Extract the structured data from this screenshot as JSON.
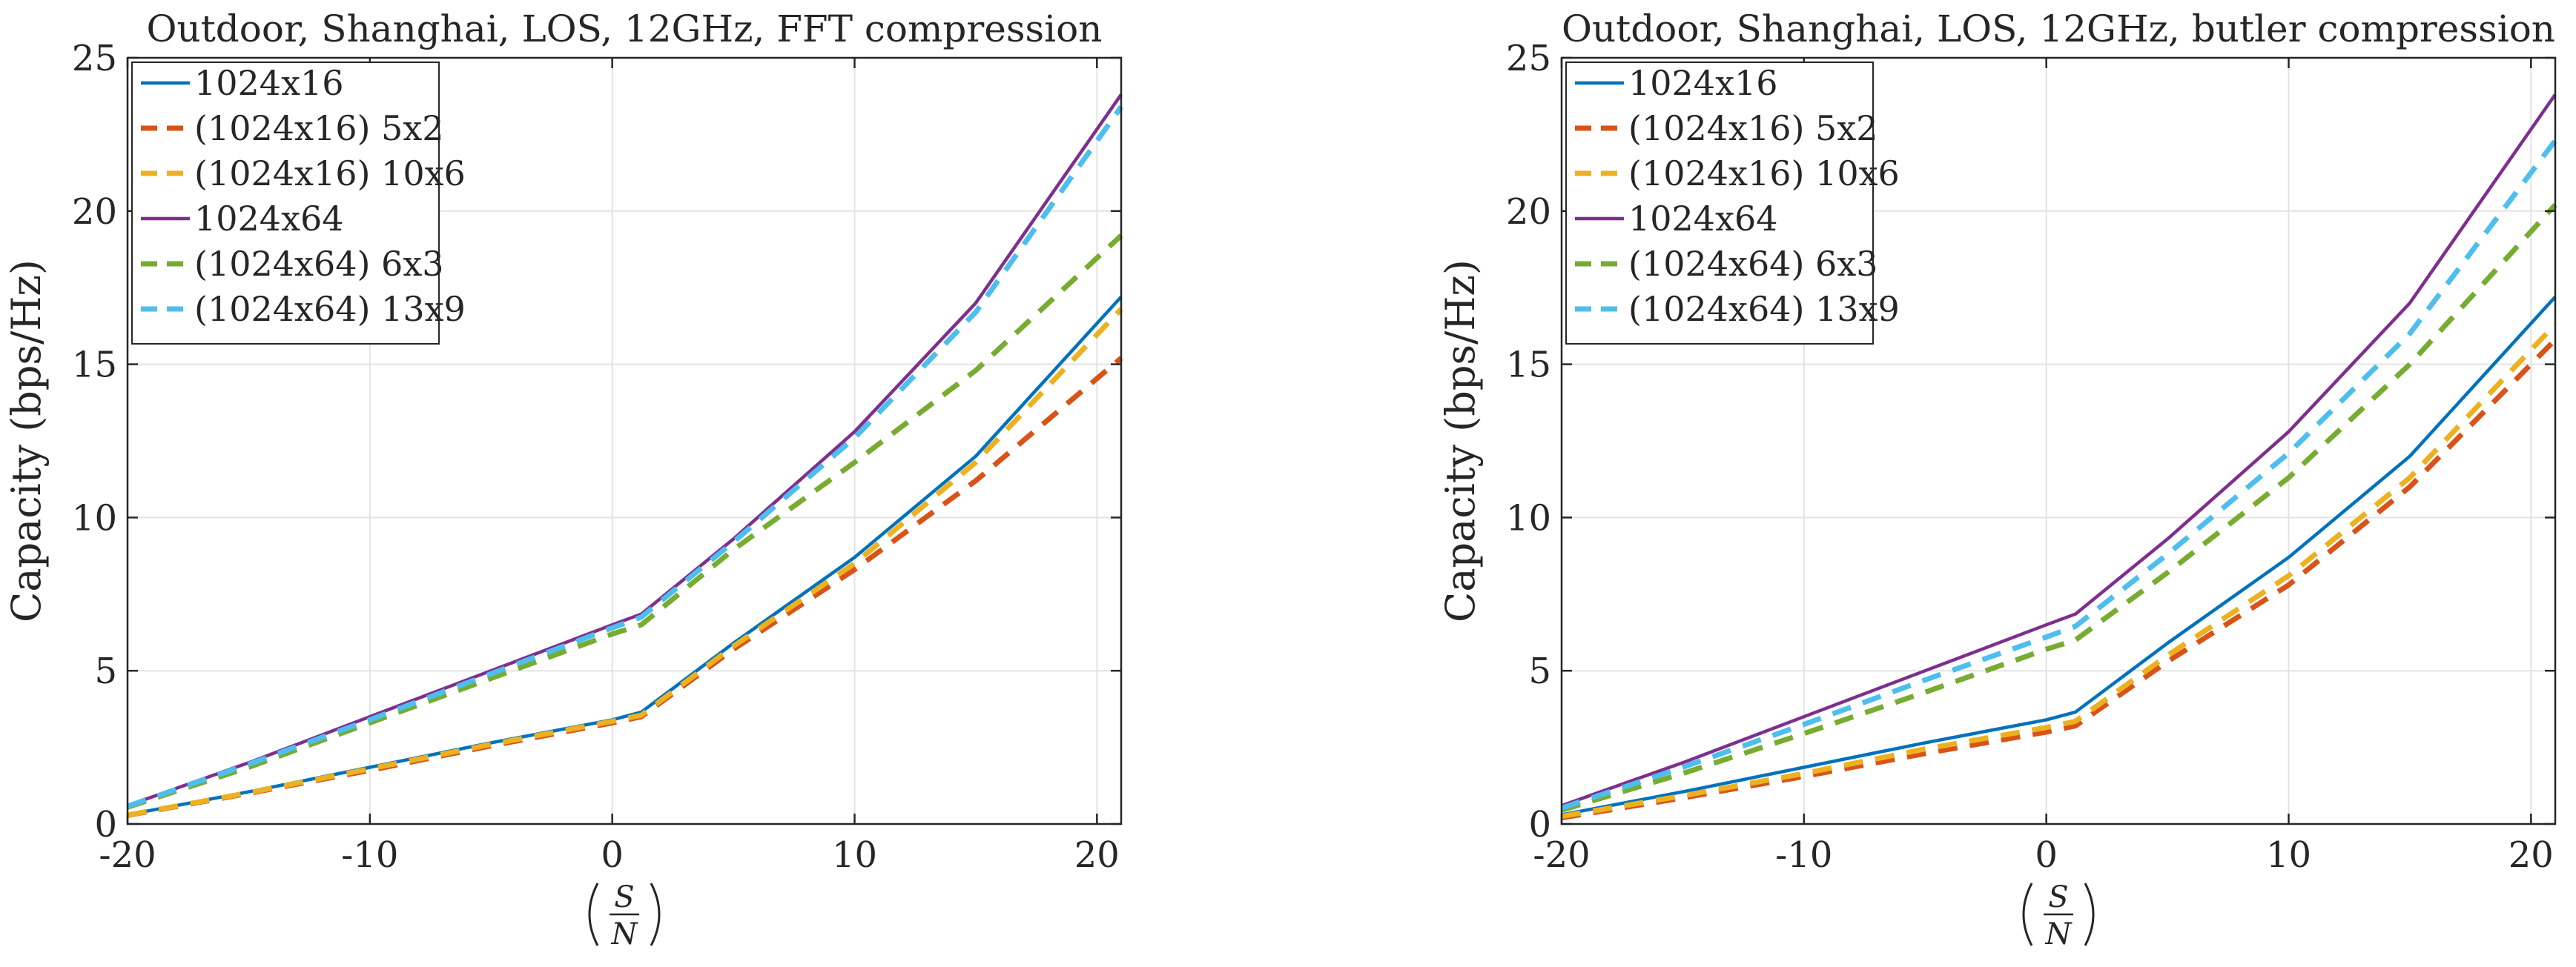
{
  "chart_data": [
    {
      "type": "line",
      "title": "Outdoor, Shanghai, LOS, 12GHz, FFT compression",
      "ylabel": "Capacity (bps/Hz)",
      "xlabel_num": "S",
      "xlabel_den": "N",
      "xlim": [
        -20,
        21
      ],
      "ylim": [
        0,
        25
      ],
      "xticks": [
        -20,
        -10,
        0,
        10,
        20
      ],
      "xticklabels": [
        "-20",
        "-10",
        "0",
        "10",
        "20"
      ],
      "yticks": [
        0,
        5,
        10,
        15,
        20,
        25
      ],
      "yticklabels": [
        "0",
        "5",
        "10",
        "15",
        "20",
        "25"
      ],
      "grid": true,
      "legend_position": "top-left",
      "series": [
        {
          "name": "1024x16",
          "color": "#0072BD",
          "dashed": false,
          "x": [
            -20,
            -15,
            -10,
            -5,
            0,
            1.2,
            5,
            10,
            15,
            21
          ],
          "y": [
            0.3,
            1.05,
            1.85,
            2.65,
            3.4,
            3.65,
            5.9,
            8.7,
            12.0,
            17.2
          ]
        },
        {
          "name": "(1024x16) 5x2",
          "color": "#D95319",
          "dashed": true,
          "x": [
            -20,
            -15,
            -10,
            -5,
            0,
            1.2,
            5,
            10,
            15,
            21
          ],
          "y": [
            0.28,
            1.0,
            1.75,
            2.55,
            3.3,
            3.5,
            5.7,
            8.3,
            11.2,
            15.2
          ]
        },
        {
          "name": "(1024x16) 10x6",
          "color": "#EDB120",
          "dashed": true,
          "x": [
            -20,
            -15,
            -10,
            -5,
            0,
            1.2,
            5,
            10,
            15,
            21
          ],
          "y": [
            0.29,
            1.02,
            1.8,
            2.6,
            3.35,
            3.55,
            5.8,
            8.5,
            11.8,
            16.8
          ]
        },
        {
          "name": "1024x64",
          "color": "#7E2F8E",
          "dashed": false,
          "x": [
            -20,
            -15,
            -10,
            -5,
            0,
            1.2,
            5,
            10,
            15,
            21
          ],
          "y": [
            0.6,
            2.0,
            3.5,
            5.0,
            6.5,
            6.85,
            9.3,
            12.8,
            17.0,
            23.8
          ]
        },
        {
          "name": "(1024x64) 6x3",
          "color": "#77AC30",
          "dashed": true,
          "x": [
            -20,
            -15,
            -10,
            -5,
            0,
            1.2,
            5,
            10,
            15,
            21
          ],
          "y": [
            0.55,
            1.85,
            3.3,
            4.75,
            6.2,
            6.5,
            8.95,
            11.8,
            14.8,
            19.2
          ]
        },
        {
          "name": "(1024x64) 13x9",
          "color": "#4DBEEE",
          "dashed": true,
          "x": [
            -20,
            -15,
            -10,
            -5,
            0,
            1.2,
            5,
            10,
            15,
            21
          ],
          "y": [
            0.58,
            1.95,
            3.4,
            4.9,
            6.4,
            6.75,
            9.2,
            12.6,
            16.7,
            23.4
          ]
        }
      ]
    },
    {
      "type": "line",
      "title": "Outdoor, Shanghai, LOS, 12GHz, butler compression",
      "ylabel": "Capacity (bps/Hz)",
      "xlabel_num": "S",
      "xlabel_den": "N",
      "xlim": [
        -20,
        21
      ],
      "ylim": [
        0,
        25
      ],
      "xticks": [
        -20,
        -10,
        0,
        10,
        20
      ],
      "xticklabels": [
        "-20",
        "-10",
        "0",
        "10",
        "20"
      ],
      "yticks": [
        0,
        5,
        10,
        15,
        20,
        25
      ],
      "yticklabels": [
        "0",
        "5",
        "10",
        "15",
        "20",
        "25"
      ],
      "grid": true,
      "legend_position": "top-left",
      "series": [
        {
          "name": "1024x16",
          "color": "#0072BD",
          "dashed": false,
          "x": [
            -20,
            -15,
            -10,
            -5,
            0,
            1.2,
            5,
            10,
            15,
            21
          ],
          "y": [
            0.3,
            1.05,
            1.85,
            2.65,
            3.4,
            3.65,
            5.9,
            8.7,
            12.0,
            17.2
          ]
        },
        {
          "name": "(1024x16) 5x2",
          "color": "#D95319",
          "dashed": true,
          "x": [
            -20,
            -15,
            -10,
            -5,
            0,
            1.2,
            5,
            10,
            15,
            21
          ],
          "y": [
            0.2,
            0.85,
            1.55,
            2.3,
            3.0,
            3.2,
            5.3,
            7.8,
            11.0,
            15.8
          ]
        },
        {
          "name": "(1024x16) 10x6",
          "color": "#EDB120",
          "dashed": true,
          "x": [
            -20,
            -15,
            -10,
            -5,
            0,
            1.2,
            5,
            10,
            15,
            21
          ],
          "y": [
            0.25,
            0.92,
            1.65,
            2.45,
            3.15,
            3.35,
            5.5,
            8.1,
            11.3,
            16.3
          ]
        },
        {
          "name": "1024x64",
          "color": "#7E2F8E",
          "dashed": false,
          "x": [
            -20,
            -15,
            -10,
            -5,
            0,
            1.2,
            5,
            10,
            15,
            21
          ],
          "y": [
            0.6,
            2.0,
            3.5,
            5.0,
            6.5,
            6.85,
            9.3,
            12.8,
            17.0,
            23.8
          ]
        },
        {
          "name": "(1024x64) 6x3",
          "color": "#77AC30",
          "dashed": true,
          "x": [
            -20,
            -15,
            -10,
            -5,
            0,
            1.2,
            5,
            10,
            15,
            21
          ],
          "y": [
            0.45,
            1.65,
            2.95,
            4.3,
            5.7,
            6.0,
            8.2,
            11.3,
            15.0,
            20.2
          ]
        },
        {
          "name": "(1024x64) 13x9",
          "color": "#4DBEEE",
          "dashed": true,
          "x": [
            -20,
            -15,
            -10,
            -5,
            0,
            1.2,
            5,
            10,
            15,
            21
          ],
          "y": [
            0.52,
            1.85,
            3.25,
            4.7,
            6.1,
            6.45,
            8.8,
            12.1,
            16.0,
            22.3
          ]
        }
      ]
    }
  ]
}
